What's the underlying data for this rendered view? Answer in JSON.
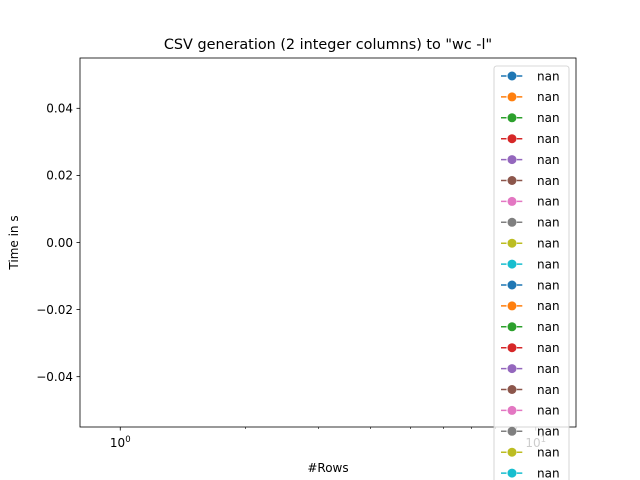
{
  "chart_data": {
    "type": "line",
    "title": "CSV generation (2 integer columns) to \"wc -l\"",
    "xlabel": "#Rows",
    "ylabel": "Time in s",
    "xscale": "log",
    "xlim": [
      0.8,
      12.5
    ],
    "ylim": [
      -0.055,
      0.055
    ],
    "x_major_ticks": [
      {
        "value": 1,
        "base": "10",
        "exp": "0"
      },
      {
        "value": 10,
        "base": "10",
        "exp": "1"
      }
    ],
    "x_minor_ticks": [
      2,
      3,
      4,
      5,
      6,
      7,
      8,
      9
    ],
    "y_ticks": [
      {
        "value": 0.04,
        "label": "0.04"
      },
      {
        "value": 0.02,
        "label": "0.02"
      },
      {
        "value": 0.0,
        "label": "0.00"
      },
      {
        "value": -0.02,
        "label": "−0.02"
      },
      {
        "value": -0.04,
        "label": "−0.04"
      }
    ],
    "grid": false,
    "legend_position": "upper right",
    "series": [
      {
        "name": "nan",
        "color": "#1f77b4",
        "marker": "circle",
        "linestyle": "dashed",
        "values": []
      },
      {
        "name": "nan",
        "color": "#ff7f0e",
        "marker": "circle",
        "linestyle": "dashed",
        "values": []
      },
      {
        "name": "nan",
        "color": "#2ca02c",
        "marker": "circle",
        "linestyle": "dashed",
        "values": []
      },
      {
        "name": "nan",
        "color": "#d62728",
        "marker": "circle",
        "linestyle": "dashed",
        "values": []
      },
      {
        "name": "nan",
        "color": "#9467bd",
        "marker": "circle",
        "linestyle": "dashed",
        "values": []
      },
      {
        "name": "nan",
        "color": "#8c564b",
        "marker": "circle",
        "linestyle": "dashed",
        "values": []
      },
      {
        "name": "nan",
        "color": "#e377c2",
        "marker": "circle",
        "linestyle": "dashed",
        "values": []
      },
      {
        "name": "nan",
        "color": "#7f7f7f",
        "marker": "circle",
        "linestyle": "dashed",
        "values": []
      },
      {
        "name": "nan",
        "color": "#bcbd22",
        "marker": "circle",
        "linestyle": "dashed",
        "values": []
      },
      {
        "name": "nan",
        "color": "#17becf",
        "marker": "circle",
        "linestyle": "dashed",
        "values": []
      },
      {
        "name": "nan",
        "color": "#1f77b4",
        "marker": "circle",
        "linestyle": "dashed",
        "values": []
      },
      {
        "name": "nan",
        "color": "#ff7f0e",
        "marker": "circle",
        "linestyle": "dashed",
        "values": []
      },
      {
        "name": "nan",
        "color": "#2ca02c",
        "marker": "circle",
        "linestyle": "dashed",
        "values": []
      },
      {
        "name": "nan",
        "color": "#d62728",
        "marker": "circle",
        "linestyle": "dashed",
        "values": []
      },
      {
        "name": "nan",
        "color": "#9467bd",
        "marker": "circle",
        "linestyle": "dashed",
        "values": []
      },
      {
        "name": "nan",
        "color": "#8c564b",
        "marker": "circle",
        "linestyle": "dashed",
        "values": []
      },
      {
        "name": "nan",
        "color": "#e377c2",
        "marker": "circle",
        "linestyle": "dashed",
        "values": []
      },
      {
        "name": "nan",
        "color": "#7f7f7f",
        "marker": "circle",
        "linestyle": "dashed",
        "values": []
      },
      {
        "name": "nan",
        "color": "#bcbd22",
        "marker": "circle",
        "linestyle": "dashed",
        "values": []
      },
      {
        "name": "nan",
        "color": "#17becf",
        "marker": "circle",
        "linestyle": "dashed",
        "values": []
      }
    ]
  }
}
